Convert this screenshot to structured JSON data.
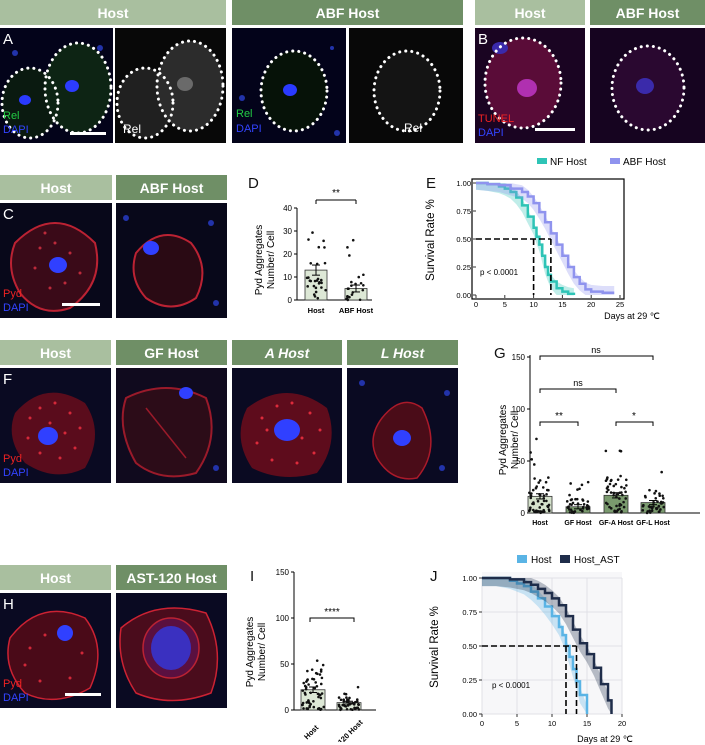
{
  "colors": {
    "hdr_light": "#a9bf9f",
    "hdr_dark": "#6f8f66",
    "nf": "#2ec4b6",
    "abf": "#8f93ee",
    "host_j": "#5ab4e5",
    "host_ast": "#1f2d4a",
    "rel": "#22cc44",
    "dapi": "#3344ff",
    "pyd": "#ee2222",
    "tunel": "#ee2222"
  },
  "headers": {
    "a_host": "Host",
    "a_abf": "ABF Host",
    "b_host": "Host",
    "b_abf": "ABF Host",
    "c_host": "Host",
    "c_abf": "ABF Host",
    "f_host": "Host",
    "f_gf": "GF Host",
    "f_a": "A Host",
    "f_l": "L Host",
    "h_host": "Host",
    "h_ast": "AST-120 Host"
  },
  "panel_letters": {
    "a": "A",
    "b": "B",
    "c": "C",
    "d": "D",
    "e": "E",
    "f": "F",
    "g": "G",
    "h": "H",
    "i": "I",
    "j": "J"
  },
  "channels": {
    "rel": "Rel",
    "dapi": "DAPI",
    "tunel": "TUNEL",
    "pyd": "Pyd"
  },
  "charts": {
    "d": {
      "ylabel1": "Pyd Aggregates",
      "ylabel2": "Number/ Cell",
      "ticks": [
        "0",
        "10",
        "20",
        "30",
        "40"
      ],
      "cats": [
        "Host",
        "ABF Host"
      ],
      "sig": "**"
    },
    "e": {
      "ylabel": "Survival Rate %",
      "xlabel": "Days at 29 ℃",
      "pval": "p < 0.0001",
      "legend_nf": "NF Host",
      "legend_abf": "ABF Host",
      "yticks": [
        "0.00",
        "0.25",
        "0.50",
        "0.75",
        "1.00"
      ],
      "xticks": [
        "0",
        "5",
        "10",
        "15",
        "20",
        "25"
      ]
    },
    "g": {
      "ylabel1": "Pyd Aggregates",
      "ylabel2": "Number/ Cell",
      "ticks": [
        "0",
        "50",
        "100",
        "150"
      ],
      "cats": [
        "Host",
        "GF Host",
        "GF-A Host",
        "GF-L Host"
      ],
      "sig_ns_top": "ns",
      "sig_ns_mid": "ns",
      "sig_left": "**",
      "sig_right": "*"
    },
    "i": {
      "ylabel1": "Pyd Aggregates",
      "ylabel2": "Number/ Cell",
      "ticks": [
        "0",
        "50",
        "100",
        "150"
      ],
      "cats": [
        "Host",
        "AST-120 Host"
      ],
      "sig": "****"
    },
    "j": {
      "ylabel": "Survival Rate %",
      "xlabel": "Days at 29 ℃",
      "pval": "p  <  0.0001",
      "legend_host": "Host",
      "legend_ast": "Host_AST",
      "yticks": [
        "0.00",
        "0.25",
        "0.50",
        "0.75",
        "1.00"
      ],
      "xticks": [
        "0",
        "5",
        "10",
        "15",
        "20"
      ]
    }
  },
  "chart_data": [
    {
      "type": "bar",
      "id": "D",
      "categories": [
        "Host",
        "ABF Host"
      ],
      "values": [
        13,
        5
      ],
      "errors": [
        2.2,
        1.5
      ],
      "ylim": [
        0,
        40
      ],
      "ylabel": "Pyd Aggregates Number/ Cell",
      "significance": "**"
    },
    {
      "type": "line",
      "id": "E",
      "title": "",
      "xlabel": "Days at 29 ℃",
      "ylabel": "Survival Rate %",
      "xlim": [
        0,
        25
      ],
      "ylim": [
        0,
        1
      ],
      "median_line": {
        "y": 0.5,
        "x_nf": 10,
        "x_abf": 13
      },
      "series": [
        {
          "name": "NF Host",
          "x": [
            0,
            2,
            4,
            5,
            6,
            7,
            8,
            9,
            10,
            10.5,
            11,
            11.5,
            12,
            12.5,
            13,
            14,
            15,
            16,
            17
          ],
          "y": [
            1,
            0.99,
            0.97,
            0.95,
            0.92,
            0.87,
            0.8,
            0.7,
            0.6,
            0.52,
            0.45,
            0.35,
            0.25,
            0.18,
            0.12,
            0.06,
            0.03,
            0.01,
            0
          ]
        },
        {
          "name": "ABF Host",
          "x": [
            0,
            2,
            4,
            6,
            8,
            9,
            10,
            11,
            12,
            13,
            14,
            15,
            16,
            17,
            18,
            19,
            20,
            22,
            24
          ],
          "y": [
            1,
            0.99,
            0.98,
            0.95,
            0.92,
            0.88,
            0.82,
            0.74,
            0.65,
            0.55,
            0.45,
            0.35,
            0.25,
            0.16,
            0.1,
            0.05,
            0.03,
            0.02,
            0.02
          ]
        }
      ],
      "annotation": "p < 0.0001"
    },
    {
      "type": "bar",
      "id": "G",
      "categories": [
        "Host",
        "GF Host",
        "GF-A Host",
        "GF-L Host"
      ],
      "values": [
        16,
        6,
        17,
        10
      ],
      "errors": [
        2.5,
        2,
        2.5,
        2
      ],
      "ylim": [
        0,
        150
      ],
      "ylabel": "Pyd Aggregates Number/ Cell"
    },
    {
      "type": "bar",
      "id": "I",
      "categories": [
        "Host",
        "AST-120 Host"
      ],
      "values": [
        22,
        8
      ],
      "errors": [
        3,
        1.5
      ],
      "ylim": [
        0,
        150
      ],
      "ylabel": "Pyd Aggregates Number/ Cell",
      "significance": "****"
    },
    {
      "type": "line",
      "id": "J",
      "xlabel": "Days at 29 ℃",
      "ylabel": "Survival Rate %",
      "xlim": [
        0,
        20
      ],
      "ylim": [
        0,
        1
      ],
      "median_line": {
        "y": 0.5,
        "x_host": 12,
        "x_ast": 13.5
      },
      "series": [
        {
          "name": "Host",
          "x": [
            0,
            2,
            4,
            5,
            6,
            7,
            8,
            9,
            10,
            11,
            11.5,
            12,
            12.5,
            13,
            13.5,
            14,
            15
          ],
          "y": [
            1,
            1,
            0.98,
            0.96,
            0.94,
            0.9,
            0.85,
            0.79,
            0.72,
            0.64,
            0.58,
            0.5,
            0.42,
            0.33,
            0.24,
            0.14,
            0
          ]
        },
        {
          "name": "Host_AST",
          "x": [
            0,
            2,
            4,
            6,
            7,
            8,
            9,
            10,
            11,
            12,
            13,
            14,
            15,
            16,
            17,
            18,
            18.5
          ],
          "y": [
            1,
            1,
            0.99,
            0.97,
            0.95,
            0.92,
            0.89,
            0.85,
            0.8,
            0.72,
            0.62,
            0.52,
            0.44,
            0.34,
            0.22,
            0.1,
            0
          ]
        }
      ],
      "annotation": "p  <  0.0001"
    }
  ]
}
